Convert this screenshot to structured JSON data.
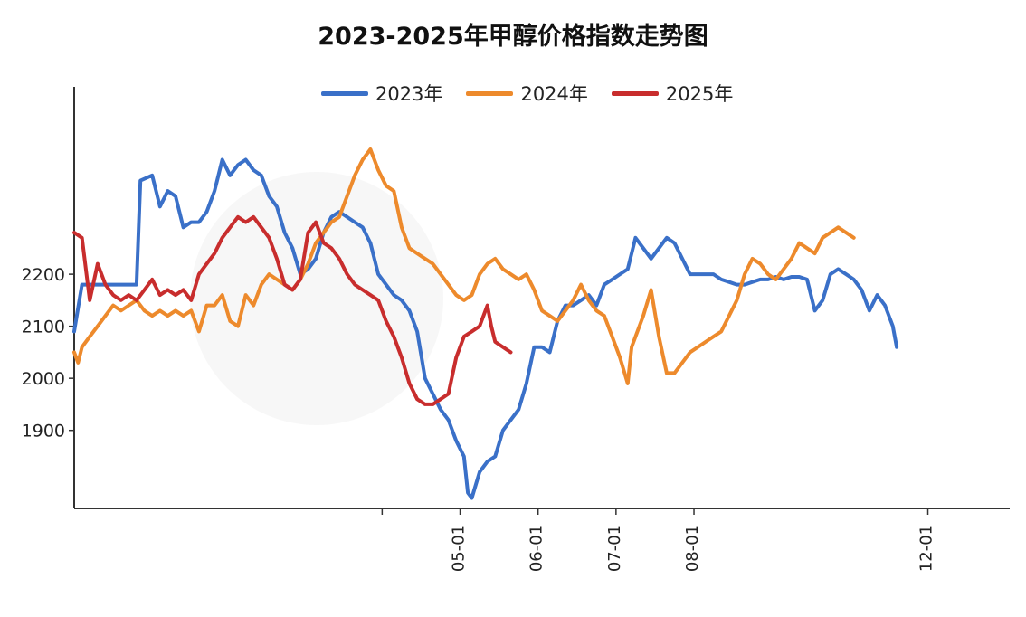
{
  "chart_data": {
    "type": "line",
    "title": "2023-2025年甲醇价格指数走势图",
    "xlabel": "",
    "ylabel": "",
    "ylim": [
      1750,
      2560
    ],
    "yticks": [
      1900,
      2000,
      2100,
      2200
    ],
    "xticks": [
      {
        "month": 4.95,
        "label": ""
      },
      {
        "month": 5.95,
        "label": "05-01"
      },
      {
        "month": 6.95,
        "label": "06-01"
      },
      {
        "month": 7.95,
        "label": "07-01"
      },
      {
        "month": 8.95,
        "label": "08-01"
      },
      {
        "month": 11.95,
        "label": "12-01"
      }
    ],
    "xlim": [
      1,
      13
    ],
    "legend_position": "top-center",
    "grid": false,
    "series": [
      {
        "name": "2023年",
        "color": "#3a70c8",
        "points": [
          [
            1.0,
            2090
          ],
          [
            1.1,
            2180
          ],
          [
            1.3,
            2180
          ],
          [
            1.5,
            2180
          ],
          [
            1.8,
            2180
          ],
          [
            1.85,
            2380
          ],
          [
            2.0,
            2390
          ],
          [
            2.1,
            2330
          ],
          [
            2.2,
            2360
          ],
          [
            2.3,
            2350
          ],
          [
            2.4,
            2290
          ],
          [
            2.5,
            2300
          ],
          [
            2.6,
            2300
          ],
          [
            2.7,
            2320
          ],
          [
            2.8,
            2360
          ],
          [
            2.9,
            2420
          ],
          [
            3.0,
            2390
          ],
          [
            3.1,
            2410
          ],
          [
            3.2,
            2420
          ],
          [
            3.3,
            2400
          ],
          [
            3.4,
            2390
          ],
          [
            3.5,
            2350
          ],
          [
            3.6,
            2330
          ],
          [
            3.7,
            2280
          ],
          [
            3.8,
            2250
          ],
          [
            3.9,
            2200
          ],
          [
            4.0,
            2210
          ],
          [
            4.1,
            2230
          ],
          [
            4.2,
            2280
          ],
          [
            4.3,
            2310
          ],
          [
            4.4,
            2320
          ],
          [
            4.5,
            2310
          ],
          [
            4.6,
            2300
          ],
          [
            4.7,
            2290
          ],
          [
            4.8,
            2260
          ],
          [
            4.9,
            2200
          ],
          [
            5.0,
            2180
          ],
          [
            5.1,
            2160
          ],
          [
            5.2,
            2150
          ],
          [
            5.3,
            2130
          ],
          [
            5.4,
            2090
          ],
          [
            5.5,
            2000
          ],
          [
            5.6,
            1970
          ],
          [
            5.7,
            1940
          ],
          [
            5.8,
            1920
          ],
          [
            5.9,
            1880
          ],
          [
            6.0,
            1850
          ],
          [
            6.05,
            1780
          ],
          [
            6.1,
            1770
          ],
          [
            6.2,
            1820
          ],
          [
            6.3,
            1840
          ],
          [
            6.4,
            1850
          ],
          [
            6.5,
            1900
          ],
          [
            6.6,
            1920
          ],
          [
            6.7,
            1940
          ],
          [
            6.8,
            1990
          ],
          [
            6.9,
            2060
          ],
          [
            7.0,
            2060
          ],
          [
            7.1,
            2050
          ],
          [
            7.2,
            2110
          ],
          [
            7.3,
            2140
          ],
          [
            7.4,
            2140
          ],
          [
            7.5,
            2150
          ],
          [
            7.6,
            2160
          ],
          [
            7.7,
            2140
          ],
          [
            7.8,
            2180
          ],
          [
            7.9,
            2190
          ],
          [
            8.0,
            2200
          ],
          [
            8.1,
            2210
          ],
          [
            8.2,
            2270
          ],
          [
            8.3,
            2250
          ],
          [
            8.4,
            2230
          ],
          [
            8.5,
            2250
          ],
          [
            8.6,
            2270
          ],
          [
            8.7,
            2260
          ],
          [
            8.8,
            2230
          ],
          [
            8.9,
            2200
          ],
          [
            9.0,
            2200
          ],
          [
            9.1,
            2200
          ],
          [
            9.2,
            2200
          ],
          [
            9.3,
            2190
          ],
          [
            9.4,
            2185
          ],
          [
            9.5,
            2180
          ],
          [
            9.6,
            2180
          ],
          [
            9.7,
            2185
          ],
          [
            9.8,
            2190
          ],
          [
            9.9,
            2190
          ],
          [
            10.0,
            2195
          ],
          [
            10.1,
            2190
          ],
          [
            10.2,
            2195
          ],
          [
            10.3,
            2195
          ],
          [
            10.4,
            2190
          ],
          [
            10.5,
            2130
          ],
          [
            10.6,
            2150
          ],
          [
            10.7,
            2200
          ],
          [
            10.8,
            2210
          ],
          [
            10.9,
            2200
          ],
          [
            11.0,
            2190
          ],
          [
            11.1,
            2170
          ],
          [
            11.2,
            2130
          ],
          [
            11.3,
            2160
          ],
          [
            11.4,
            2140
          ],
          [
            11.5,
            2100
          ],
          [
            11.55,
            2060
          ]
        ]
      },
      {
        "name": "2024年",
        "color": "#ed8a2c",
        "points": [
          [
            1.0,
            2050
          ],
          [
            1.05,
            2030
          ],
          [
            1.1,
            2060
          ],
          [
            1.2,
            2080
          ],
          [
            1.3,
            2100
          ],
          [
            1.4,
            2120
          ],
          [
            1.5,
            2140
          ],
          [
            1.6,
            2130
          ],
          [
            1.7,
            2140
          ],
          [
            1.8,
            2150
          ],
          [
            1.9,
            2130
          ],
          [
            2.0,
            2120
          ],
          [
            2.1,
            2130
          ],
          [
            2.2,
            2120
          ],
          [
            2.3,
            2130
          ],
          [
            2.4,
            2120
          ],
          [
            2.5,
            2130
          ],
          [
            2.6,
            2090
          ],
          [
            2.7,
            2140
          ],
          [
            2.8,
            2140
          ],
          [
            2.9,
            2160
          ],
          [
            3.0,
            2110
          ],
          [
            3.1,
            2100
          ],
          [
            3.2,
            2160
          ],
          [
            3.3,
            2140
          ],
          [
            3.4,
            2180
          ],
          [
            3.5,
            2200
          ],
          [
            3.6,
            2190
          ],
          [
            3.7,
            2180
          ],
          [
            3.8,
            2170
          ],
          [
            3.9,
            2190
          ],
          [
            4.0,
            2220
          ],
          [
            4.1,
            2260
          ],
          [
            4.2,
            2280
          ],
          [
            4.3,
            2300
          ],
          [
            4.4,
            2310
          ],
          [
            4.5,
            2350
          ],
          [
            4.6,
            2390
          ],
          [
            4.7,
            2420
          ],
          [
            4.8,
            2440
          ],
          [
            4.9,
            2400
          ],
          [
            5.0,
            2370
          ],
          [
            5.1,
            2360
          ],
          [
            5.2,
            2290
          ],
          [
            5.3,
            2250
          ],
          [
            5.4,
            2240
          ],
          [
            5.5,
            2230
          ],
          [
            5.6,
            2220
          ],
          [
            5.7,
            2200
          ],
          [
            5.8,
            2180
          ],
          [
            5.9,
            2160
          ],
          [
            6.0,
            2150
          ],
          [
            6.1,
            2160
          ],
          [
            6.2,
            2200
          ],
          [
            6.3,
            2220
          ],
          [
            6.4,
            2230
          ],
          [
            6.5,
            2210
          ],
          [
            6.6,
            2200
          ],
          [
            6.7,
            2190
          ],
          [
            6.8,
            2200
          ],
          [
            6.9,
            2170
          ],
          [
            7.0,
            2130
          ],
          [
            7.1,
            2120
          ],
          [
            7.2,
            2110
          ],
          [
            7.3,
            2130
          ],
          [
            7.4,
            2150
          ],
          [
            7.5,
            2180
          ],
          [
            7.6,
            2150
          ],
          [
            7.7,
            2130
          ],
          [
            7.8,
            2120
          ],
          [
            7.9,
            2080
          ],
          [
            8.0,
            2040
          ],
          [
            8.1,
            1990
          ],
          [
            8.15,
            2060
          ],
          [
            8.3,
            2120
          ],
          [
            8.4,
            2170
          ],
          [
            8.5,
            2080
          ],
          [
            8.6,
            2010
          ],
          [
            8.7,
            2010
          ],
          [
            8.8,
            2030
          ],
          [
            8.9,
            2050
          ],
          [
            9.0,
            2060
          ],
          [
            9.1,
            2070
          ],
          [
            9.2,
            2080
          ],
          [
            9.3,
            2090
          ],
          [
            9.4,
            2120
          ],
          [
            9.5,
            2150
          ],
          [
            9.6,
            2200
          ],
          [
            9.7,
            2230
          ],
          [
            9.8,
            2220
          ],
          [
            9.9,
            2200
          ],
          [
            10.0,
            2190
          ],
          [
            10.1,
            2210
          ],
          [
            10.2,
            2230
          ],
          [
            10.3,
            2260
          ],
          [
            10.4,
            2250
          ],
          [
            10.5,
            2240
          ],
          [
            10.6,
            2270
          ],
          [
            10.7,
            2280
          ],
          [
            10.8,
            2290
          ],
          [
            10.9,
            2280
          ],
          [
            11.0,
            2270
          ]
        ]
      },
      {
        "name": "2025年",
        "color": "#c82d2d",
        "points": [
          [
            1.0,
            2280
          ],
          [
            1.1,
            2270
          ],
          [
            1.2,
            2150
          ],
          [
            1.3,
            2220
          ],
          [
            1.4,
            2180
          ],
          [
            1.5,
            2160
          ],
          [
            1.6,
            2150
          ],
          [
            1.7,
            2160
          ],
          [
            1.8,
            2150
          ],
          [
            1.9,
            2170
          ],
          [
            2.0,
            2190
          ],
          [
            2.1,
            2160
          ],
          [
            2.2,
            2170
          ],
          [
            2.3,
            2160
          ],
          [
            2.4,
            2170
          ],
          [
            2.5,
            2150
          ],
          [
            2.6,
            2200
          ],
          [
            2.7,
            2220
          ],
          [
            2.8,
            2240
          ],
          [
            2.9,
            2270
          ],
          [
            3.0,
            2290
          ],
          [
            3.1,
            2310
          ],
          [
            3.2,
            2300
          ],
          [
            3.3,
            2310
          ],
          [
            3.4,
            2290
          ],
          [
            3.5,
            2270
          ],
          [
            3.6,
            2230
          ],
          [
            3.7,
            2180
          ],
          [
            3.8,
            2170
          ],
          [
            3.9,
            2190
          ],
          [
            4.0,
            2280
          ],
          [
            4.1,
            2300
          ],
          [
            4.2,
            2260
          ],
          [
            4.3,
            2250
          ],
          [
            4.4,
            2230
          ],
          [
            4.5,
            2200
          ],
          [
            4.6,
            2180
          ],
          [
            4.7,
            2170
          ],
          [
            4.8,
            2160
          ],
          [
            4.9,
            2150
          ],
          [
            5.0,
            2110
          ],
          [
            5.1,
            2080
          ],
          [
            5.2,
            2040
          ],
          [
            5.3,
            1990
          ],
          [
            5.4,
            1960
          ],
          [
            5.5,
            1950
          ],
          [
            5.6,
            1950
          ],
          [
            5.7,
            1960
          ],
          [
            5.8,
            1970
          ],
          [
            5.9,
            2040
          ],
          [
            6.0,
            2080
          ],
          [
            6.1,
            2090
          ],
          [
            6.2,
            2100
          ],
          [
            6.3,
            2140
          ],
          [
            6.35,
            2100
          ],
          [
            6.4,
            2070
          ],
          [
            6.5,
            2060
          ],
          [
            6.6,
            2050
          ]
        ]
      }
    ]
  }
}
